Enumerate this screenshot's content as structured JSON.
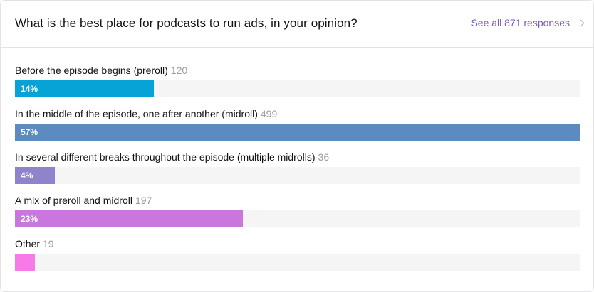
{
  "question": {
    "title": "What is the best place for podcasts to run ads, in your opinion?",
    "see_all_label": "See all 871 responses"
  },
  "options": [
    {
      "label": "Before the episode begins (preroll)",
      "count": "120",
      "percent_label": "14%",
      "percent": 14,
      "color": "#07a3d6"
    },
    {
      "label": "In the middle of the episode, one after another (midroll)",
      "count": "499",
      "percent_label": "57%",
      "percent": 57,
      "color": "#5b8bc0"
    },
    {
      "label": "In several different breaks throughout the episode (multiple midrolls)",
      "count": "36",
      "percent_label": "4%",
      "percent": 4,
      "color": "#8f84cc"
    },
    {
      "label": "A mix of preroll and midroll",
      "count": "197",
      "percent_label": "23%",
      "percent": 23,
      "color": "#c977de"
    },
    {
      "label": "Other",
      "count": "19",
      "percent_label": "",
      "percent": 2,
      "color": "#f77ae8"
    }
  ]
}
